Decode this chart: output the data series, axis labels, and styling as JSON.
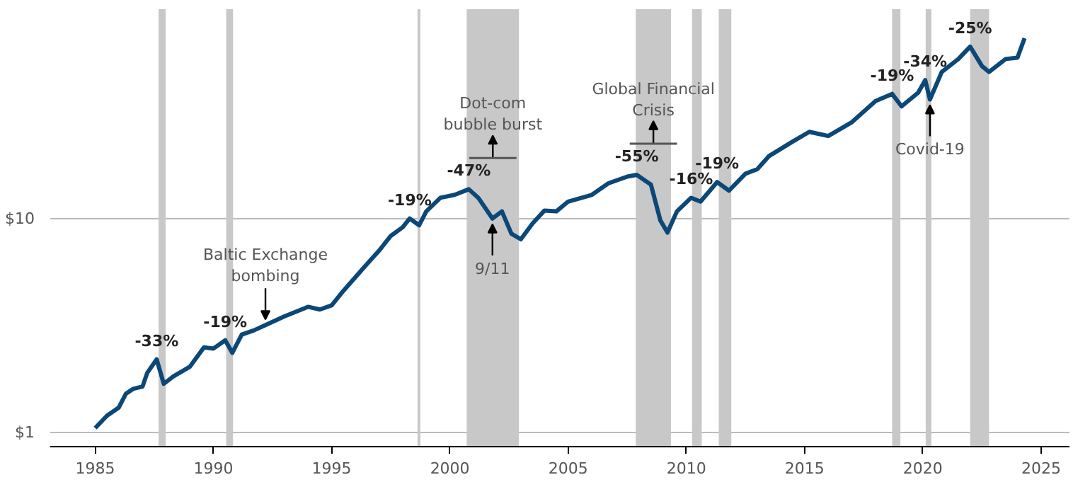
{
  "chart_data": {
    "type": "line",
    "x": [
      1985.0,
      1985.5,
      1986.0,
      1986.3,
      1986.6,
      1987.0,
      1987.2,
      1987.6,
      1987.9,
      1988.3,
      1989.0,
      1989.6,
      1990.0,
      1990.5,
      1990.8,
      1991.2,
      1991.7,
      1992.2,
      1993.0,
      1994.0,
      1994.5,
      1995.0,
      1995.5,
      1996.3,
      1997.0,
      1997.5,
      1998.0,
      1998.3,
      1998.7,
      1999.0,
      1999.6,
      2000.2,
      2000.8,
      2001.2,
      2001.8,
      2002.2,
      2002.6,
      2003.0,
      2003.5,
      2004.0,
      2004.5,
      2005.0,
      2006.0,
      2006.7,
      2007.5,
      2007.9,
      2008.5,
      2008.9,
      2009.2,
      2009.6,
      2010.2,
      2010.6,
      2011.3,
      2011.8,
      2012.5,
      2013.0,
      2013.5,
      2014.5,
      2015.2,
      2016.0,
      2017.0,
      2018.0,
      2018.7,
      2019.1,
      2019.8,
      2020.1,
      2020.3,
      2020.8,
      2021.5,
      2022.0,
      2022.5,
      2022.8,
      2023.5,
      2024.0,
      2024.3
    ],
    "series": [
      {
        "color": "#0b4777",
        "values": [
          1.05,
          1.2,
          1.31,
          1.52,
          1.6,
          1.64,
          1.9,
          2.2,
          1.69,
          1.83,
          2.03,
          2.5,
          2.47,
          2.7,
          2.36,
          2.87,
          3.0,
          3.18,
          3.49,
          3.87,
          3.76,
          3.93,
          4.6,
          5.8,
          7.07,
          8.3,
          9.1,
          10,
          9.3,
          10.8,
          12.5,
          12.9,
          13.7,
          12.5,
          10,
          10.8,
          8.5,
          8.0,
          9.5,
          10.9,
          10.8,
          12.0,
          12.9,
          14.6,
          15.7,
          16,
          14.4,
          9.8,
          8.6,
          10.8,
          12.5,
          12,
          14.8,
          13.5,
          16.2,
          17,
          19.6,
          22.9,
          25.4,
          24.3,
          28.2,
          35.4,
          38.2,
          33.4,
          38.7,
          44.3,
          36,
          48.4,
          55.6,
          63.5,
          51.5,
          48.4,
          55.6,
          56.4,
          69.5
        ]
      }
    ],
    "log": "y",
    "xlim": [
      1983.1,
      2026.2
    ],
    "ylim": [
      0.86,
      95
    ],
    "xticks": [
      1985,
      1990,
      1995,
      2000,
      2005,
      2010,
      2015,
      2020,
      2025
    ],
    "yticks": [
      {
        "value": 1,
        "label": "$1"
      },
      {
        "value": 10,
        "label": "$10"
      }
    ],
    "grid": "y",
    "bands": [
      {
        "axis": "x",
        "from": 1987.68,
        "to": 1987.98,
        "color": "#c8c8c8"
      },
      {
        "axis": "x",
        "from": 1990.54,
        "to": 1990.83,
        "color": "#c8c8c8"
      },
      {
        "axis": "x",
        "from": 1998.63,
        "to": 1998.75,
        "color": "#c8c8c8"
      },
      {
        "axis": "x",
        "from": 2000.71,
        "to": 2002.92,
        "color": "#c8c8c8"
      },
      {
        "axis": "x",
        "from": 2007.86,
        "to": 2009.35,
        "color": "#c8c8c8"
      },
      {
        "axis": "x",
        "from": 2010.24,
        "to": 2010.65,
        "color": "#c8c8c8"
      },
      {
        "axis": "x",
        "from": 2011.37,
        "to": 2011.9,
        "color": "#c8c8c8"
      },
      {
        "axis": "x",
        "from": 2018.7,
        "to": 2019.05,
        "color": "#c8c8c8"
      },
      {
        "axis": "x",
        "from": 2020.12,
        "to": 2020.36,
        "color": "#c8c8c8"
      },
      {
        "axis": "x",
        "from": 2022.0,
        "to": 2022.8,
        "color": "#c8c8c8"
      }
    ],
    "annotations": [
      {
        "text": "-33%",
        "x": 1987.6,
        "y": 2.2
      },
      {
        "text": "-19%",
        "x": 1990.5,
        "y": 2.7
      },
      {
        "text": "-19%",
        "x": 1998.3,
        "y": 10
      },
      {
        "text": "-47%",
        "x": 2000.8,
        "y": 13.7
      },
      {
        "text": "-55%",
        "x": 2007.9,
        "y": 16
      },
      {
        "text": "-16%",
        "x": 2010.2,
        "y": 12.5
      },
      {
        "text": "-19%",
        "x": 2011.3,
        "y": 14.8
      },
      {
        "text": "-19%",
        "x": 2018.7,
        "y": 38.2
      },
      {
        "text": "-34%",
        "x": 2020.1,
        "y": 44.3
      },
      {
        "text": "-25%",
        "x": 2022.0,
        "y": 63.5
      },
      {
        "text": "Baltic Exchange\nbombing",
        "x": 1992.2,
        "y": 3.18
      },
      "Dot-com\nbubble burst",
      {
        "text": "9/11",
        "x": 2001.8,
        "y": 10
      },
      "Global Financial\nCrisis",
      {
        "text": "Covid-19",
        "x": 2020.3,
        "y": 36
      }
    ]
  }
}
